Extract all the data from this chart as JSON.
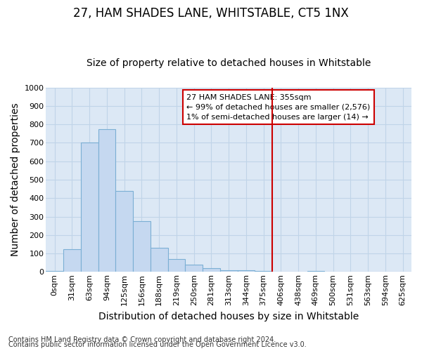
{
  "title": "27, HAM SHADES LANE, WHITSTABLE, CT5 1NX",
  "subtitle": "Size of property relative to detached houses in Whitstable",
  "xlabel": "Distribution of detached houses by size in Whitstable",
  "ylabel": "Number of detached properties",
  "bin_labels": [
    "0sqm",
    "31sqm",
    "63sqm",
    "94sqm",
    "125sqm",
    "156sqm",
    "188sqm",
    "219sqm",
    "250sqm",
    "281sqm",
    "313sqm",
    "344sqm",
    "375sqm",
    "406sqm",
    "438sqm",
    "469sqm",
    "500sqm",
    "531sqm",
    "563sqm",
    "594sqm",
    "625sqm"
  ],
  "bar_values": [
    5,
    125,
    700,
    775,
    440,
    275,
    130,
    70,
    38,
    22,
    10,
    10,
    5,
    0,
    0,
    5,
    0,
    0,
    0,
    0,
    0
  ],
  "bar_color": "#c5d8f0",
  "bar_edge_color": "#7bafd4",
  "ylim": [
    0,
    1000
  ],
  "yticks": [
    0,
    100,
    200,
    300,
    400,
    500,
    600,
    700,
    800,
    900,
    1000
  ],
  "red_line_x": 12.5,
  "annotation_box_text": "27 HAM SHADES LANE: 355sqm\n← 99% of detached houses are smaller (2,576)\n1% of semi-detached houses are larger (14) →",
  "footer_line1": "Contains HM Land Registry data © Crown copyright and database right 2024.",
  "footer_line2": "Contains public sector information licensed under the Open Government Licence v3.0.",
  "fig_bg_color": "#ffffff",
  "plot_bg_color": "#dce8f5",
  "grid_color": "#c0d4e8",
  "title_fontsize": 12,
  "subtitle_fontsize": 10,
  "axis_label_fontsize": 10,
  "tick_fontsize": 8,
  "footer_fontsize": 7
}
